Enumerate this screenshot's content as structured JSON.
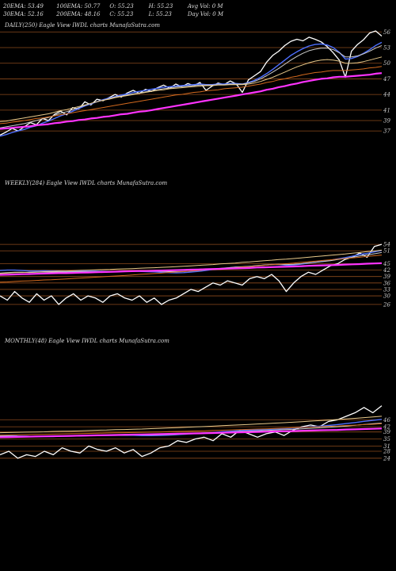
{
  "header": {
    "rows": [
      [
        "20EMA: 53.49",
        "100EMA: 50.77",
        "O: 55.23",
        "H: 55.23",
        "Avg Vol: 0  M"
      ],
      [
        "30EMA: 52.16",
        "200EMA: 48.16",
        "C: 55.23",
        "L: 55.23",
        "Day Vol: 0  M"
      ]
    ]
  },
  "chart_data": [
    {
      "type": "line",
      "title": "DAILY(250) Eagle  View  IWDL  charts MunafaSutra.com",
      "ylim": [
        35.5,
        56.5
      ],
      "yticks": [
        56,
        53,
        50,
        47,
        44,
        41,
        39,
        37
      ],
      "series": [
        {
          "color": "#ffffff",
          "values": [
            36.2,
            36.8,
            37.5,
            37.0,
            37.8,
            38.6,
            38.2,
            39.4,
            39.0,
            40.2,
            40.8,
            40.1,
            41.5,
            41.2,
            42.6,
            42.0,
            43.1,
            42.8,
            43.4,
            44.0,
            43.5,
            44.3,
            44.8,
            44.2,
            45.0,
            44.6,
            45.3,
            45.8,
            45.2,
            46.0,
            45.5,
            46.1,
            45.7,
            46.3,
            44.8,
            45.6,
            46.2,
            45.9,
            46.6,
            46.0,
            44.4,
            46.8,
            47.6,
            48.4,
            50.2,
            51.5,
            52.3,
            53.4,
            54.2,
            54.6,
            54.3,
            55.0,
            54.6,
            54.1,
            53.2,
            52.0,
            50.6,
            47.3,
            52.3,
            53.6,
            54.5,
            55.8,
            56.2,
            55.2
          ]
        },
        {
          "color": "#4d6fff",
          "values": [
            36.0,
            36.3,
            36.7,
            37.0,
            37.3,
            37.7,
            38.0,
            38.5,
            38.9,
            39.4,
            39.9,
            40.3,
            40.8,
            41.3,
            41.8,
            42.2,
            42.6,
            43.0,
            43.3,
            43.6,
            43.9,
            44.1,
            44.4,
            44.6,
            44.8,
            45.0,
            45.2,
            45.4,
            45.5,
            45.6,
            45.7,
            45.8,
            45.9,
            46.0,
            45.9,
            45.9,
            46.0,
            46.0,
            46.1,
            46.1,
            46.0,
            46.3,
            46.7,
            47.3,
            48.0,
            48.8,
            49.7,
            50.6,
            51.5,
            52.2,
            52.8,
            53.3,
            53.6,
            53.7,
            53.5,
            53.0,
            52.1,
            50.8,
            50.9,
            51.3,
            51.9,
            52.6,
            53.4,
            54.0
          ]
        },
        {
          "color": "#cccccc",
          "values": [
            37.6,
            37.8,
            38.0,
            38.2,
            38.4,
            38.7,
            39.0,
            39.3,
            39.6,
            40.0,
            40.4,
            40.7,
            41.1,
            41.5,
            41.9,
            42.3,
            42.6,
            42.9,
            43.2,
            43.5,
            43.7,
            43.9,
            44.1,
            44.3,
            44.5,
            44.7,
            44.9,
            45.1,
            45.2,
            45.4,
            45.5,
            45.6,
            45.7,
            45.8,
            45.8,
            45.8,
            45.9,
            45.9,
            46.0,
            46.0,
            46.0,
            46.2,
            46.5,
            47.0,
            47.6,
            48.3,
            49.0,
            49.8,
            50.6,
            51.3,
            51.9,
            52.4,
            52.7,
            52.9,
            52.9,
            52.6,
            52.0,
            51.2,
            51.2,
            51.4,
            51.8,
            52.3,
            52.9,
            53.4
          ]
        },
        {
          "color": "#e8c98a",
          "values": [
            38.8,
            38.9,
            39.1,
            39.3,
            39.5,
            39.7,
            39.9,
            40.1,
            40.3,
            40.6,
            40.9,
            41.1,
            41.4,
            41.7,
            42.0,
            42.3,
            42.6,
            42.9,
            43.1,
            43.4,
            43.6,
            43.8,
            44.0,
            44.2,
            44.4,
            44.6,
            44.8,
            44.9,
            45.1,
            45.2,
            45.3,
            45.4,
            45.5,
            45.6,
            45.7,
            45.7,
            45.8,
            45.8,
            45.9,
            45.9,
            45.9,
            46.0,
            46.2,
            46.5,
            46.9,
            47.3,
            47.8,
            48.3,
            48.8,
            49.3,
            49.7,
            50.1,
            50.4,
            50.6,
            50.7,
            50.6,
            50.4,
            50.0,
            50.0,
            50.1,
            50.3,
            50.6,
            50.9,
            51.2
          ]
        },
        {
          "color": "#d2691e",
          "values": [
            38.4,
            38.5,
            38.7,
            38.8,
            39.0,
            39.2,
            39.4,
            39.5,
            39.7,
            39.9,
            40.1,
            40.3,
            40.5,
            40.7,
            40.9,
            41.1,
            41.3,
            41.5,
            41.7,
            41.9,
            42.1,
            42.3,
            42.5,
            42.7,
            42.9,
            43.1,
            43.3,
            43.5,
            43.7,
            43.9,
            44.0,
            44.2,
            44.4,
            44.5,
            44.7,
            44.8,
            44.9,
            45.1,
            45.2,
            45.3,
            45.4,
            45.6,
            45.8,
            46.0,
            46.3,
            46.5,
            46.8,
            47.0,
            47.3,
            47.5,
            47.8,
            48.0,
            48.2,
            48.3,
            48.5,
            48.6,
            48.6,
            48.6,
            48.7,
            48.8,
            48.9,
            49.1,
            49.2,
            49.4
          ]
        },
        {
          "color": "#ff33ff",
          "values": [
            37.4,
            37.5,
            37.6,
            37.7,
            37.8,
            37.9,
            38.1,
            38.2,
            38.3,
            38.5,
            38.6,
            38.8,
            38.9,
            39.1,
            39.2,
            39.4,
            39.5,
            39.7,
            39.8,
            40.0,
            40.2,
            40.3,
            40.5,
            40.7,
            40.8,
            41.0,
            41.2,
            41.4,
            41.6,
            41.8,
            42.0,
            42.2,
            42.4,
            42.6,
            42.8,
            43.0,
            43.2,
            43.4,
            43.6,
            43.8,
            44.0,
            44.2,
            44.4,
            44.6,
            44.9,
            45.1,
            45.4,
            45.6,
            45.9,
            46.1,
            46.4,
            46.6,
            46.8,
            47.0,
            47.1,
            47.3,
            47.4,
            47.4,
            47.5,
            47.6,
            47.7,
            47.8,
            48.0,
            48.1
          ]
        }
      ]
    },
    {
      "type": "line",
      "title": "WEEKLY(284) Eagle  View  IWDL  charts MunafaSutra.com",
      "ylim": [
        23,
        57
      ],
      "yticks": [
        54,
        51,
        45,
        42,
        39,
        36,
        33,
        30,
        26
      ],
      "series": [
        {
          "color": "#ffffff",
          "values": [
            30,
            28,
            32,
            29,
            27,
            31,
            28,
            30,
            26,
            29,
            31,
            28,
            30,
            29,
            27,
            30,
            31,
            29,
            28,
            30,
            27,
            29,
            26,
            28,
            29,
            31,
            33,
            32,
            34,
            36,
            35,
            37,
            36,
            35,
            38,
            39,
            38,
            40,
            37,
            32,
            36,
            39,
            41,
            40,
            42,
            44,
            45,
            47,
            48,
            50,
            48,
            53,
            54
          ]
        },
        {
          "color": "#4d6fff",
          "values": [
            41.8,
            42.0,
            42.0,
            41.8,
            41.6,
            41.6,
            41.7,
            41.6,
            41.6,
            41.5,
            41.5,
            41.6,
            41.5,
            41.5,
            41.4,
            41.3,
            41.4,
            41.6,
            41.5,
            41.4,
            41.3,
            41.2,
            41.0,
            40.8,
            40.7,
            40.8,
            41.1,
            41.4,
            41.8,
            42.3,
            42.6,
            43.0,
            43.3,
            43.4,
            43.7,
            44.0,
            44.3,
            44.6,
            44.6,
            44.3,
            44.4,
            44.8,
            45.3,
            45.7,
            46.1,
            46.6,
            47.2,
            47.8,
            48.5,
            49.3,
            49.8,
            50.5,
            51.2
          ]
        },
        {
          "color": "#cccccc",
          "values": [
            40.6,
            40.8,
            41.0,
            41.0,
            40.9,
            41.0,
            41.1,
            41.1,
            41.1,
            41.1,
            41.2,
            41.3,
            41.3,
            41.3,
            41.3,
            41.3,
            41.4,
            41.5,
            41.5,
            41.5,
            41.5,
            41.5,
            41.4,
            41.3,
            41.3,
            41.4,
            41.6,
            41.8,
            42.1,
            42.5,
            42.8,
            43.1,
            43.4,
            43.6,
            43.8,
            44.1,
            44.4,
            44.6,
            44.7,
            44.6,
            44.7,
            45.0,
            45.4,
            45.7,
            46.0,
            46.4,
            46.9,
            47.4,
            48.0,
            48.6,
            49.1,
            49.6,
            50.2
          ]
        },
        {
          "color": "#e8c98a",
          "values": [
            40.4,
            40.6,
            40.8,
            40.9,
            41.0,
            41.1,
            41.3,
            41.4,
            41.5,
            41.6,
            41.7,
            41.9,
            42.0,
            42.1,
            42.2,
            42.3,
            42.5,
            42.6,
            42.7,
            42.9,
            43.0,
            43.1,
            43.3,
            43.4,
            43.6,
            43.8,
            44.0,
            44.2,
            44.4,
            44.6,
            44.9,
            45.1,
            45.3,
            45.6,
            45.8,
            46.1,
            46.4,
            46.6,
            46.9,
            47.1,
            47.4,
            47.7,
            48.0,
            48.3,
            48.6,
            48.9,
            49.2,
            49.5,
            49.9,
            50.2,
            50.6,
            50.9,
            51.3
          ]
        },
        {
          "color": "#d2691e",
          "values": [
            36.4,
            36.5,
            36.7,
            36.9,
            37.0,
            37.2,
            37.4,
            37.5,
            37.7,
            37.9,
            38.1,
            38.3,
            38.5,
            38.7,
            38.9,
            39.1,
            39.3,
            39.5,
            39.7,
            40.0,
            40.2,
            40.4,
            40.6,
            40.9,
            41.1,
            41.3,
            41.6,
            41.8,
            42.1,
            42.3,
            42.6,
            42.8,
            43.1,
            43.4,
            43.6,
            43.9,
            44.2,
            44.5,
            44.7,
            45.0,
            45.3,
            45.6,
            45.9,
            46.2,
            46.5,
            46.8,
            47.1,
            47.4,
            47.7,
            48.0,
            48.4,
            48.7,
            49.0
          ]
        },
        {
          "color": "#ff33ff",
          "values": [
            39.8,
            39.9,
            40.0,
            40.1,
            40.2,
            40.3,
            40.4,
            40.5,
            40.6,
            40.6,
            40.7,
            40.8,
            40.9,
            41.0,
            41.1,
            41.2,
            41.3,
            41.4,
            41.5,
            41.6,
            41.6,
            41.7,
            41.8,
            41.9,
            42.0,
            42.1,
            42.2,
            42.3,
            42.4,
            42.5,
            42.6,
            42.7,
            42.8,
            42.9,
            43.0,
            43.2,
            43.3,
            43.4,
            43.5,
            43.6,
            43.7,
            43.8,
            44.0,
            44.1,
            44.2,
            44.3,
            44.4,
            44.6,
            44.7,
            44.8,
            45.0,
            45.1,
            45.2
          ]
        }
      ]
    },
    {
      "type": "line",
      "title": "MONTHLY(48) Eagle  View  IWDL  charts MunafaSutra.com",
      "ylim": [
        23,
        57
      ],
      "yticks": [
        46,
        42,
        39,
        35,
        31,
        28,
        24
      ],
      "series": [
        {
          "color": "#ffffff",
          "values": [
            26,
            28,
            24,
            26,
            25,
            28,
            26,
            30,
            28,
            27,
            31,
            29,
            28,
            30,
            27,
            29,
            25,
            27,
            30,
            31,
            34,
            33,
            35,
            36,
            34,
            38,
            36,
            40,
            38,
            36,
            38,
            39,
            37,
            40,
            42,
            43,
            42,
            45,
            46,
            48,
            50,
            53,
            50,
            54
          ]
        },
        {
          "color": "#4d6fff",
          "values": [
            37.0,
            37.0,
            36.7,
            36.6,
            36.4,
            36.4,
            36.4,
            36.6,
            36.7,
            36.7,
            36.9,
            37.0,
            37.0,
            37.1,
            37.1,
            37.1,
            36.9,
            36.9,
            37.0,
            37.2,
            37.5,
            37.8,
            38.1,
            38.5,
            38.7,
            39.1,
            39.4,
            39.8,
            40.1,
            40.2,
            40.5,
            40.7,
            40.9,
            41.2,
            41.6,
            42.0,
            42.3,
            42.7,
            43.2,
            43.8,
            44.4,
            45.1,
            45.6,
            46.2
          ]
        },
        {
          "color": "#cccccc",
          "values": [
            36.6,
            36.6,
            36.5,
            36.5,
            36.4,
            36.5,
            36.5,
            36.6,
            36.7,
            36.8,
            36.9,
            37.0,
            37.1,
            37.2,
            37.2,
            37.3,
            37.3,
            37.3,
            37.4,
            37.5,
            37.7,
            37.9,
            38.1,
            38.3,
            38.5,
            38.8,
            39.0,
            39.3,
            39.5,
            39.7,
            39.9,
            40.1,
            40.3,
            40.5,
            40.8,
            41.1,
            41.4,
            41.7,
            42.0,
            42.4,
            42.8,
            43.3,
            43.7,
            44.1
          ]
        },
        {
          "color": "#e8c98a",
          "values": [
            38.6,
            38.7,
            38.8,
            38.9,
            39.0,
            39.1,
            39.3,
            39.4,
            39.5,
            39.7,
            39.8,
            40.0,
            40.1,
            40.3,
            40.4,
            40.6,
            40.7,
            40.9,
            41.1,
            41.3,
            41.5,
            41.7,
            41.9,
            42.1,
            42.3,
            42.6,
            42.8,
            43.1,
            43.3,
            43.6,
            43.8,
            44.1,
            44.3,
            44.6,
            44.9,
            45.2,
            45.5,
            45.8,
            46.1,
            46.5,
            46.8,
            47.2,
            47.6,
            48.0
          ]
        },
        {
          "color": "#d2691e",
          "values": [
            37.2,
            37.3,
            37.4,
            37.5,
            37.6,
            37.7,
            37.8,
            37.9,
            38.0,
            38.1,
            38.2,
            38.3,
            38.4,
            38.5,
            38.6,
            38.7,
            38.8,
            38.9,
            39.0,
            39.2,
            39.3,
            39.4,
            39.6,
            39.7,
            39.9,
            40.0,
            40.2,
            40.3,
            40.5,
            40.7,
            40.8,
            41.0,
            41.2,
            41.4,
            41.6,
            41.8,
            42.0,
            42.2,
            42.4,
            42.7,
            42.9,
            43.2,
            43.4,
            43.7
          ]
        },
        {
          "color": "#ff33ff",
          "values": [
            36.0,
            36.1,
            36.2,
            36.3,
            36.4,
            36.5,
            36.6,
            36.7,
            36.8,
            36.9,
            37.0,
            37.1,
            37.2,
            37.3,
            37.4,
            37.5,
            37.6,
            37.7,
            37.8,
            37.9,
            38.0,
            38.1,
            38.2,
            38.3,
            38.4,
            38.6,
            38.7,
            38.8,
            38.9,
            39.0,
            39.2,
            39.3,
            39.4,
            39.5,
            39.7,
            39.8,
            40.0,
            40.1,
            40.2,
            40.4,
            40.5,
            40.7,
            40.8,
            41.0
          ]
        }
      ]
    }
  ]
}
